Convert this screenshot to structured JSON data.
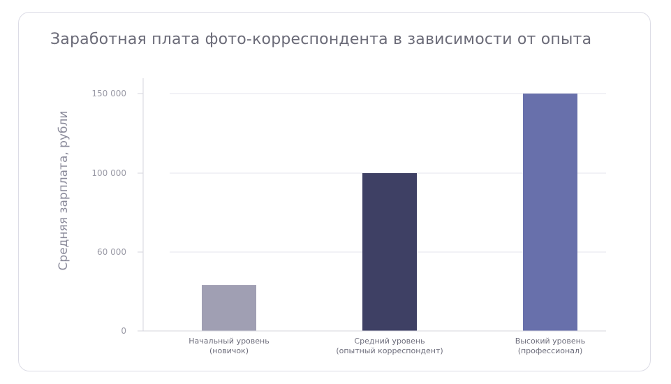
{
  "chart_data": {
    "type": "bar",
    "title": "Заработная плата фото-корреспондента в зависимости от опыта",
    "ylabel": "Средняя зарплата, рубли",
    "xlabel": "",
    "categories": [
      [
        "Начальный уровень",
        "(новичок)"
      ],
      [
        "Средний уровень",
        "(опытный корреспондент)"
      ],
      [
        "Высокий уровень",
        "(профессионал)"
      ]
    ],
    "values": [
      35000,
      100000,
      150000
    ],
    "bar_colors": [
      "#a09fb3",
      "#3e4064",
      "#6870ab"
    ],
    "y_ticks": [
      {
        "value": 0,
        "label": "0"
      },
      {
        "value": 60000,
        "label": "60 000"
      },
      {
        "value": 100000,
        "label": "100 000"
      },
      {
        "value": 150000,
        "label": "150 000"
      }
    ],
    "grid": true,
    "legend": "none"
  }
}
